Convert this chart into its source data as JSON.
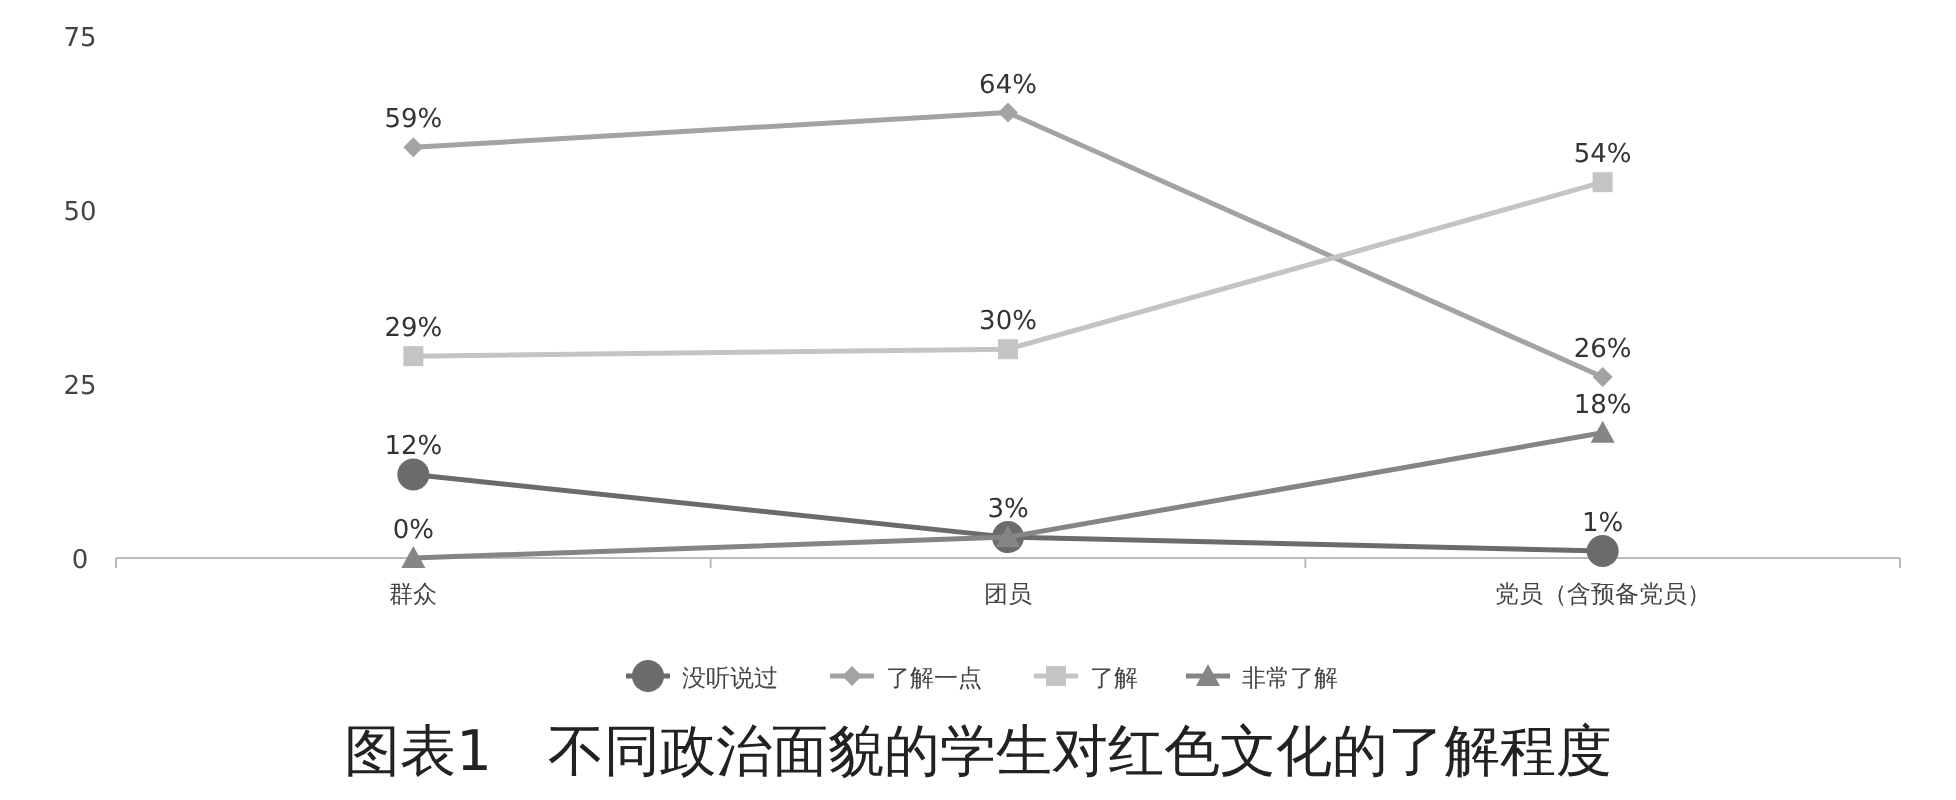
{
  "chart_data": {
    "type": "line",
    "title": "图表1　不同政治面貌的学生对红色文化的了解程度",
    "categories": [
      "群众",
      "团员",
      "党员（含预备党员）"
    ],
    "ylim": [
      0,
      75
    ],
    "yticks": [
      0,
      25,
      50,
      75
    ],
    "grid": false,
    "legend": "bottom",
    "series": [
      {
        "name": "没听说过",
        "color": "#6b6b6b",
        "marker": "circle",
        "values": [
          12,
          3,
          1
        ],
        "value_labels": [
          "12%",
          null,
          "1%"
        ]
      },
      {
        "name": "了解一点",
        "color": "#a3a3a3",
        "marker": "diamond",
        "values": [
          59,
          64,
          26
        ],
        "value_labels": [
          "59%",
          "64%",
          "26%"
        ]
      },
      {
        "name": "了解",
        "color": "#c4c4c4",
        "marker": "square",
        "values": [
          29,
          30,
          54
        ],
        "value_labels": [
          "29%",
          "30%",
          "54%"
        ]
      },
      {
        "name": "非常了解",
        "color": "#858585",
        "marker": "triangle",
        "values": [
          0,
          3,
          18
        ],
        "value_labels": [
          "0%",
          "3%",
          "18%"
        ]
      }
    ]
  }
}
